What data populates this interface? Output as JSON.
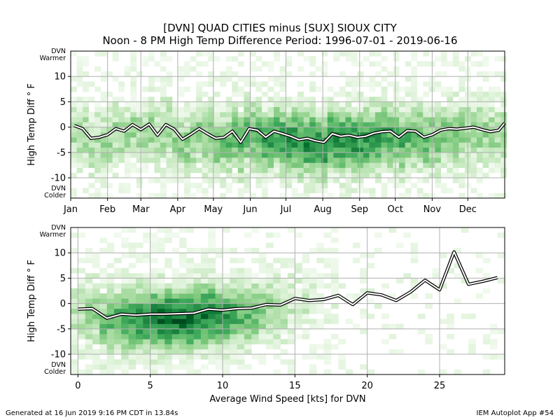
{
  "header": {
    "title_line1": "[DVN] QUAD CITIES minus [SUX] SIOUX CITY",
    "title_line2": "Noon - 8 PM High Temp Difference Period: 1996-07-01 - 2019-06-16"
  },
  "footer": {
    "generated": "Generated at 16 Jun 2019 9:16 PM CDT in 13.84s",
    "app": "IEM Autoplot App #54"
  },
  "chart_data": [
    {
      "type": "heatmap",
      "ylabel": "High Temp Diff ° F",
      "xlabel": "",
      "warmer_label": [
        "DVN",
        "Warmer"
      ],
      "colder_label": [
        "DVN",
        "Colder"
      ],
      "colormap": "greens",
      "grid": true,
      "x_tick_labels": [
        "Jan",
        "Feb",
        "Mar",
        "Apr",
        "May",
        "Jun",
        "Jul",
        "Aug",
        "Sep",
        "Oct",
        "Nov",
        "Dec"
      ],
      "x_tick_values": [
        1,
        32,
        60,
        91,
        121,
        152,
        182,
        213,
        244,
        274,
        305,
        335
      ],
      "xlim": [
        1,
        366
      ],
      "ylim": [
        -14,
        15
      ],
      "y_ticks": [
        -10,
        -5,
        0,
        5,
        10
      ],
      "weekly_mean_line": {
        "x": [
          4,
          11,
          18,
          25,
          32,
          39,
          46,
          53,
          60,
          67,
          74,
          81,
          88,
          95,
          102,
          109,
          116,
          123,
          130,
          137,
          144,
          151,
          158,
          165,
          172,
          179,
          186,
          193,
          200,
          207,
          214,
          221,
          228,
          235,
          242,
          249,
          256,
          263,
          270,
          277,
          284,
          291,
          298,
          305,
          312,
          319,
          326,
          333,
          340,
          347,
          354,
          361,
          366
        ],
        "y": [
          0.3,
          -0.3,
          -2.2,
          -2.0,
          -1.5,
          -0.3,
          -0.8,
          0.5,
          -0.5,
          0.6,
          -1.6,
          0.5,
          -0.4,
          -2.4,
          -1.4,
          -0.3,
          -1.3,
          -2.2,
          -2.0,
          -0.8,
          -3.0,
          -0.3,
          -0.6,
          -2.0,
          -0.8,
          -1.3,
          -1.8,
          -2.5,
          -2.2,
          -2.7,
          -3.0,
          -1.3,
          -1.8,
          -1.6,
          -2.0,
          -1.8,
          -1.2,
          -0.9,
          -0.8,
          -2.0,
          -0.7,
          -0.8,
          -2.0,
          -1.5,
          -0.6,
          -0.3,
          -0.4,
          -0.2,
          0.0,
          -0.5,
          -0.9,
          -0.6,
          0.8
        ]
      }
    },
    {
      "type": "heatmap",
      "xlabel": "Average Wind Speed [kts] for DVN",
      "ylabel": "High Temp Diff ° F",
      "warmer_label": [
        "DVN",
        "Warmer"
      ],
      "colder_label": [
        "DVN",
        "Colder"
      ],
      "colormap": "greens",
      "grid": true,
      "xlim": [
        -0.5,
        29.5
      ],
      "ylim": [
        -14,
        15
      ],
      "x_ticks": [
        0,
        5,
        10,
        15,
        20,
        25
      ],
      "y_ticks": [
        -10,
        -5,
        0,
        5,
        10
      ],
      "mean_line": {
        "x": [
          0,
          1,
          2,
          3,
          4,
          5,
          6,
          7,
          8,
          9,
          10,
          11,
          12,
          13,
          14,
          15,
          16,
          17,
          18,
          19,
          20,
          21,
          22,
          23,
          24,
          25,
          26,
          27,
          28,
          29
        ],
        "y": [
          -1.1,
          -1.0,
          -2.9,
          -2.1,
          -2.3,
          -2.1,
          -2.1,
          -2.0,
          -1.9,
          -1.1,
          -1.3,
          -1.0,
          -0.9,
          -0.2,
          -0.3,
          1.0,
          0.6,
          0.8,
          1.6,
          -0.2,
          2.1,
          1.7,
          0.6,
          2.3,
          4.6,
          2.7,
          10.2,
          3.8,
          4.4,
          5.1
        ]
      }
    }
  ]
}
